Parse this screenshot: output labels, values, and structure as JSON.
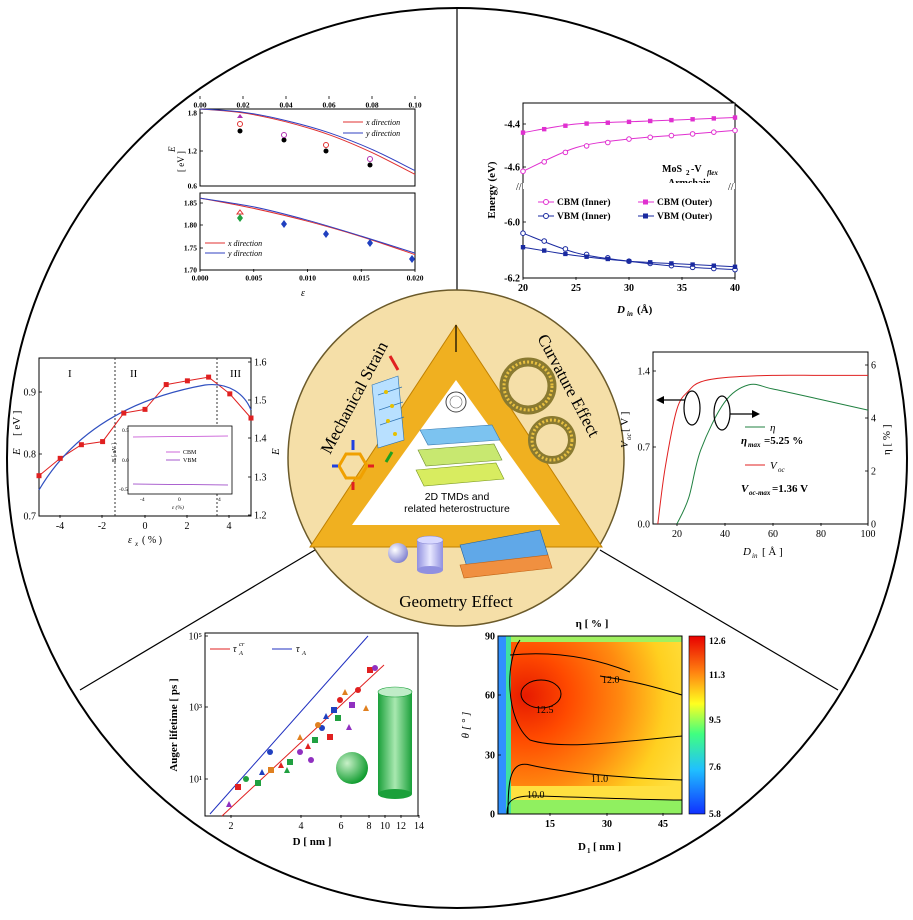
{
  "center": {
    "label_line1": "2D TMDs and",
    "label_line2": "related heterostructure",
    "mechanical": "Mechanical Strain",
    "curvature": "Curvature Effect",
    "geometry": "Geometry Effect"
  },
  "panel_strain": {
    "top": {
      "x_ticks": [
        "0.00",
        "0.02",
        "0.04",
        "0.06",
        "0.08",
        "0.10"
      ],
      "y_ticks": [
        "1.8",
        "1.2",
        "0.6"
      ],
      "ylabel": "E",
      "ylabel_sub": "g",
      "yunit": "[ eV ]",
      "legend": [
        "x direction",
        "y direction"
      ],
      "colors": [
        "#e03030",
        "#3040c0"
      ]
    },
    "bottom": {
      "x_ticks": [
        "0.000",
        "0.005",
        "0.010",
        "0.015",
        "0.020"
      ],
      "y_ticks": [
        "1.85",
        "1.80",
        "1.75",
        "1.70"
      ],
      "xlabel": "ε",
      "legend": [
        "x direction",
        "y direction"
      ]
    }
  },
  "panel_curv": {
    "ylabel": "Energy (eV)",
    "y_ticks": [
      "-4.4",
      "-4.6",
      "-6.0",
      "-6.2"
    ],
    "x_ticks": [
      "20",
      "25",
      "30",
      "35",
      "40"
    ],
    "xlabel": "D",
    "xlabel_sub": "in",
    "xunit": "(Å)",
    "title1": "MoS",
    "title1_sub": "2",
    "title1_rest": "-V",
    "title1_sub2": "flex",
    "title2": "Armchair",
    "legend": [
      "CBM (Inner)",
      "CBM (Outer)",
      "VBM (Inner)",
      "VBM (Outer)"
    ]
  },
  "panel_eg": {
    "regions": [
      "I",
      "II",
      "III"
    ],
    "ylabel": "E",
    "ylabel_sub": "g",
    "yunit": "[ eV ]",
    "y_ticks": [
      "0.9",
      "0.8",
      "0.7"
    ],
    "y2label": "E",
    "y2label_sub": "W",
    "y2_ticks": [
      "1.6",
      "1.5",
      "1.4",
      "1.3",
      "1.2"
    ],
    "x_ticks": [
      "-4",
      "-2",
      "0",
      "2",
      "4"
    ],
    "xlabel": "ε",
    "xlabel_sub": "x",
    "xunit": "( % )",
    "inset_ylabel": "E [ eV ]",
    "inset_yticks": [
      "0.5",
      "0.0",
      "-0.5"
    ],
    "inset_xticks": [
      "-4",
      "0",
      "4"
    ],
    "inset_xlabel": "ε (%)",
    "inset_legend": [
      "CBM",
      "VBM"
    ]
  },
  "panel_voc": {
    "ylabel": "V",
    "ylabel_sub": "oc",
    "yunit": "[ V ]",
    "y_ticks": [
      "1.4",
      "0.7",
      "0.0"
    ],
    "y2label": "η [ % ]",
    "y2_ticks": [
      "6",
      "4",
      "2",
      "0"
    ],
    "x_ticks": [
      "20",
      "40",
      "60",
      "80",
      "100"
    ],
    "xlabel": "D",
    "xlabel_sub": "in",
    "xunit": "[ Å ]",
    "legend_eta": "η",
    "eta_max_a": "η",
    "eta_max_sub": "max",
    "eta_max_b": "=5.25 %",
    "legend_voc": "V",
    "legend_voc_sub": "oc",
    "voc_max_a": "V",
    "voc_max_sub": "oc-max",
    "voc_max_b": "=1.36 V"
  },
  "panel_auger": {
    "ylabel": "Auger lifetime [ ps ]",
    "y_ticks": [
      "10⁵",
      "10³",
      "10¹"
    ],
    "x_ticks": [
      "2",
      "4",
      "6",
      "8",
      "10",
      "12",
      "14"
    ],
    "xlabel": "D [ nm ]",
    "legend_a": "τ",
    "legend_a_sub": "A",
    "legend_a_sup": "cr",
    "legend_b": "τ",
    "legend_b_sub": "A"
  },
  "panel_eta": {
    "title": "η  [ % ]",
    "ylabel": "θ [ ° ]",
    "y_ticks": [
      "90",
      "60",
      "30",
      "0"
    ],
    "x_ticks": [
      "15",
      "30",
      "45"
    ],
    "xlabel": "D",
    "xlabel_sub": "1",
    "xunit": "[ nm ]",
    "colorbar_ticks": [
      "12.6",
      "11.3",
      "9.5",
      "7.6",
      "5.8"
    ],
    "contours": [
      "12.0",
      "12.5",
      "11.0",
      "10.0"
    ]
  },
  "chart_data": [
    {
      "type": "line",
      "ylabel": "Eg [ eV ]",
      "xlim": [
        0,
        0.1
      ],
      "ylim": [
        0.6,
        1.8
      ],
      "series": [
        {
          "name": "x direction",
          "x": [
            0,
            0.02,
            0.04,
            0.06,
            0.08,
            0.1
          ],
          "y": [
            1.8,
            1.74,
            1.6,
            1.4,
            1.12,
            0.78
          ]
        },
        {
          "name": "y direction",
          "x": [
            0,
            0.02,
            0.04,
            0.06,
            0.08,
            0.1
          ],
          "y": [
            1.8,
            1.75,
            1.62,
            1.43,
            1.17,
            0.84
          ]
        }
      ]
    },
    {
      "type": "line",
      "xlabel": "ε",
      "xlim": [
        0,
        0.02
      ],
      "ylim": [
        1.7,
        1.85
      ],
      "series": [
        {
          "name": "x direction",
          "x": [
            0,
            0.005,
            0.01,
            0.015,
            0.02
          ],
          "y": [
            1.84,
            1.82,
            1.795,
            1.765,
            1.73
          ]
        },
        {
          "name": "y direction",
          "x": [
            0,
            0.005,
            0.01,
            0.015,
            0.02
          ],
          "y": [
            1.84,
            1.823,
            1.797,
            1.766,
            1.733
          ]
        }
      ]
    },
    {
      "type": "line",
      "ylabel": "Energy (eV)",
      "xlabel": "Din (Å)",
      "xlim": [
        20,
        40
      ],
      "series": [
        {
          "name": "CBM (Inner)",
          "x": [
            20,
            25,
            30,
            35,
            40
          ],
          "y": [
            -4.62,
            -4.51,
            -4.47,
            -4.45,
            -4.43
          ]
        },
        {
          "name": "CBM (Outer)",
          "x": [
            20,
            25,
            30,
            35,
            40
          ],
          "y": [
            -4.44,
            -4.4,
            -4.39,
            -4.38,
            -4.37
          ]
        },
        {
          "name": "VBM (Inner)",
          "x": [
            20,
            25,
            30,
            35,
            40
          ],
          "y": [
            -6.04,
            -6.11,
            -6.14,
            -6.16,
            -6.17
          ]
        },
        {
          "name": "VBM (Outer)",
          "x": [
            20,
            25,
            30,
            35,
            40
          ],
          "y": [
            -6.09,
            -6.12,
            -6.14,
            -6.15,
            -6.16
          ]
        }
      ]
    },
    {
      "type": "line",
      "ylabel": "Eg [ eV ]",
      "xlabel": "εx ( % )",
      "xlim": [
        -5,
        5
      ],
      "ylim": [
        0.7,
        0.95
      ],
      "series": [
        {
          "name": "",
          "x": [
            -5,
            -4,
            -3,
            -2,
            -1,
            0,
            1,
            2,
            3,
            4,
            5
          ],
          "y": [
            0.765,
            0.793,
            0.815,
            0.82,
            0.866,
            0.872,
            0.912,
            0.918,
            0.924,
            0.897,
            0.858
          ]
        }
      ]
    },
    {
      "type": "line",
      "xlabel": "Din [ Å ]",
      "xlim": [
        10,
        100
      ],
      "series": [
        {
          "name": "Voc",
          "x": [
            12,
            15,
            20,
            25,
            30,
            40,
            60,
            80,
            100
          ],
          "y": [
            0,
            0.5,
            1.05,
            1.22,
            1.3,
            1.34,
            1.36,
            1.36,
            1.36
          ]
        },
        {
          "name": "η",
          "x": [
            20,
            25,
            30,
            40,
            50,
            60,
            80,
            100
          ],
          "y": [
            0,
            1.0,
            2.8,
            4.6,
            5.25,
            5.1,
            4.7,
            4.3
          ]
        }
      ]
    },
    {
      "type": "scatter",
      "ylabel": "Auger lifetime [ ps ]",
      "xlabel": "D [ nm ]",
      "series": [
        {
          "name": "τA^cr",
          "x": [
            2,
            14
          ],
          "y": [
            1,
            100000
          ]
        },
        {
          "name": "τA",
          "x": [
            2,
            12
          ],
          "y": [
            2,
            100000
          ]
        }
      ]
    },
    {
      "type": "heatmap",
      "title": "η  [ % ]",
      "xlabel": "D1 [ nm ]",
      "ylabel": "θ [ ° ]",
      "xlim": [
        0,
        50
      ],
      "ylim": [
        0,
        90
      ],
      "colorbar": [
        5.8,
        7.6,
        9.5,
        11.3,
        12.6
      ],
      "contour_levels": [
        10.0,
        11.0,
        12.0,
        12.5
      ]
    }
  ]
}
